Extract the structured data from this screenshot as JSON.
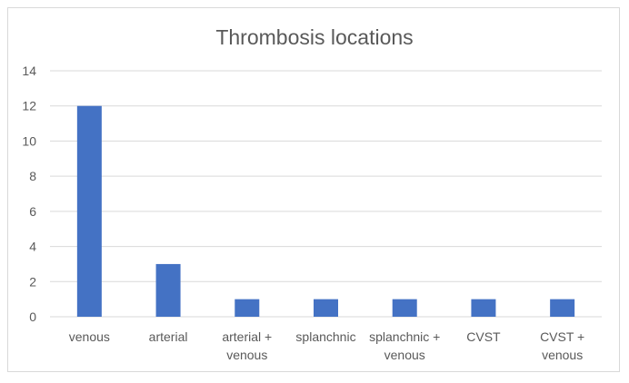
{
  "chart_data": {
    "type": "bar",
    "title": "Thrombosis locations",
    "xlabel": "",
    "ylabel": "",
    "categories": [
      [
        "venous"
      ],
      [
        "arterial"
      ],
      [
        "arterial +",
        "venous"
      ],
      [
        "splanchnic"
      ],
      [
        "splanchnic +",
        "venous"
      ],
      [
        "CVST"
      ],
      [
        "CVST +",
        "venous"
      ]
    ],
    "values": [
      12,
      3,
      1,
      1,
      1,
      1,
      1
    ],
    "ylim": [
      0,
      14
    ],
    "yticks": [
      0,
      2,
      4,
      6,
      8,
      10,
      12,
      14
    ],
    "grid": true,
    "legend": "none",
    "colors": {
      "bar": "#4472c4",
      "grid": "#d9d9d9",
      "text": "#595959",
      "border": "#d9d9d9"
    }
  }
}
